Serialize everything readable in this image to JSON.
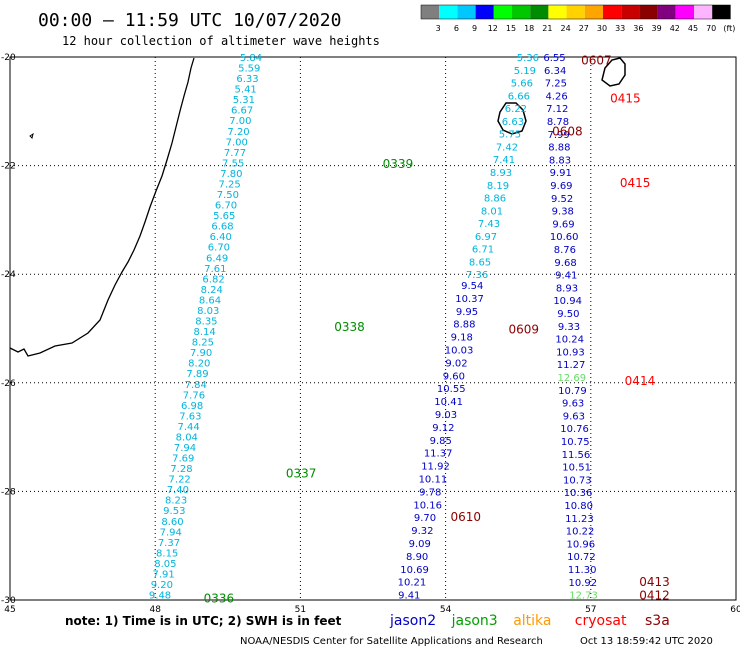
{
  "header": {
    "title": "00:00 – 11:59 UTC 10/07/2020",
    "subtitle": "12 hour collection of altimeter wave heights"
  },
  "colorbar": {
    "labels": [
      "3",
      "6",
      "9",
      "12",
      "15",
      "18",
      "21",
      "24",
      "27",
      "30",
      "33",
      "36",
      "39",
      "42",
      "45",
      "70",
      "(ft)"
    ],
    "colors": [
      "#7f7f7f",
      "#00ffff",
      "#00c8ff",
      "#0000ff",
      "#00ff00",
      "#00c800",
      "#008c00",
      "#ffff00",
      "#ffd200",
      "#ffa500",
      "#ff0000",
      "#c80000",
      "#8b0000",
      "#800080",
      "#ff00ff",
      "#ffb4ff",
      "#000000"
    ]
  },
  "axes": {
    "x_ticks": [
      "45",
      "48",
      "51",
      "54",
      "57",
      "60"
    ],
    "y_ticks": [
      "-20",
      "-22",
      "-24",
      "-26",
      "-28",
      "-30"
    ],
    "lon_range": [
      45,
      60
    ],
    "lat_range": [
      -30,
      -20
    ]
  },
  "passes": [
    {
      "label": "0607",
      "color": "#8b0000",
      "lon": 56.8,
      "lat": -20.05
    },
    {
      "label": "0415",
      "color": "#ff0000",
      "lon": 57.4,
      "lat": -20.75
    },
    {
      "label": "0608",
      "color": "#8b0000",
      "lon": 56.2,
      "lat": -21.35
    },
    {
      "label": "0339",
      "color": "#008c00",
      "lon": 52.7,
      "lat": -21.95
    },
    {
      "label": "0415",
      "color": "#ff0000",
      "lon": 57.6,
      "lat": -22.3
    },
    {
      "label": "0338",
      "color": "#008c00",
      "lon": 51.7,
      "lat": -24.95
    },
    {
      "label": "0609",
      "color": "#8b0000",
      "lon": 55.3,
      "lat": -25.0
    },
    {
      "label": "0414",
      "color": "#ff0000",
      "lon": 57.7,
      "lat": -25.95
    },
    {
      "label": "0337",
      "color": "#008c00",
      "lon": 50.7,
      "lat": -27.65
    },
    {
      "label": "0610",
      "color": "#8b0000",
      "lon": 54.1,
      "lat": -28.45
    },
    {
      "label": "0413",
      "color": "#8b0000",
      "lon": 58.0,
      "lat": -29.65
    },
    {
      "label": "0336",
      "color": "#008c00",
      "lon": 49.0,
      "lat": -29.95
    },
    {
      "label": "0412",
      "color": "#8b0000",
      "lon": 58.0,
      "lat": -29.9
    }
  ],
  "tracks": [
    {
      "name": "jason3-pass-0337-0339",
      "color": "#00b4dc",
      "start": [
        49.98,
        -20.0
      ],
      "end": [
        48.1,
        -29.9
      ],
      "values": [
        "5.84",
        "5.59",
        "6.33",
        "5.41",
        "5.31",
        "6.67",
        "7.00",
        "7.20",
        "7.00",
        "7.77",
        "7.55",
        "7.80",
        "7.25",
        "7.50",
        "6.70",
        "5.65",
        "6.68",
        "6.40",
        "6.70",
        "6.49",
        "7.61",
        "6.82",
        "8.24",
        "8.64",
        "8.03",
        "8.35",
        "8.14",
        "8.25",
        "7.90",
        "8.20",
        "7.89",
        "7.84",
        "7.76",
        "6.98",
        "7.63",
        "7.44",
        "8.04",
        "7.94",
        "7.69",
        "7.28",
        "7.22",
        "7.40",
        "8.23",
        "9.53",
        "8.60",
        "7.94",
        "7.37",
        "8.15",
        "8.05",
        "7.91",
        "9.20",
        "9.48"
      ]
    },
    {
      "name": "cryosat-pass-0608",
      "color": "#00b4dc",
      "start": [
        55.7,
        -20.0
      ],
      "end": [
        54.65,
        -24.0
      ],
      "values": [
        "5.36",
        "5.19",
        "5.66",
        "6.66",
        "6.22",
        "6.63",
        "5.75",
        "7.42",
        "7.41",
        "8.93",
        "8.19",
        "8.86",
        "8.01",
        "7.43",
        "6.97",
        "6.71",
        "8.65",
        "7.36"
      ]
    },
    {
      "name": "jason2-pass-0609-0610",
      "color": "#0000c8",
      "start": [
        54.55,
        -24.2
      ],
      "end": [
        53.25,
        -29.9
      ],
      "values": [
        "9.54",
        "10.37",
        "9.95",
        "8.88",
        "9.18",
        "10.03",
        "9.02",
        "9.60",
        "10.55",
        "10.41",
        "9.03",
        "9.12",
        "9.85",
        "11.37",
        "11.92",
        "10.11",
        "9.78",
        "10.16",
        "9.70",
        "9.32",
        "9.09",
        "8.90",
        "10.69",
        "10.21",
        "9.41"
      ]
    },
    {
      "name": "cryosat-pass-0412-0415",
      "color": "#0000c8",
      "start": [
        56.25,
        -20.0
      ],
      "end": [
        56.85,
        -29.9
      ],
      "values": [
        "6.55",
        "6.34",
        "7.25",
        "4.26",
        "7.12",
        "8.78",
        "7.99",
        "8.88",
        "8.83",
        "9.91",
        "9.69",
        "9.52",
        "9.38",
        "9.69",
        "10.60",
        "8.76",
        "9.68",
        "9.41",
        "8.93",
        "10.94",
        "9.50",
        "9.33",
        "10.24",
        "10.93",
        "11.27",
        "12.69",
        "10.79",
        "9.63",
        "9.63",
        "10.76",
        "10.75",
        "11.56",
        "10.51",
        "10.73",
        "10.36",
        "10.80",
        "11.23",
        "10.22",
        "10.96",
        "10.72",
        "11.30",
        "10.92",
        "12.73"
      ]
    }
  ],
  "footer": {
    "note": "note: 1) Time is in UTC; 2) SWH is in feet",
    "missions": [
      {
        "label": "jason2",
        "color": "#0000c8"
      },
      {
        "label": "jason3",
        "color": "#00a000"
      },
      {
        "label": "altika",
        "color": "#ff9900"
      },
      {
        "label": "cryosat",
        "color": "#ff0000"
      },
      {
        "label": "s3a",
        "color": "#8b0000"
      }
    ],
    "credit": "NOAA/NESDIS Center for Satellite Applications and Research",
    "timestamp": "Oct 13 18:59:42 UTC 2020"
  }
}
